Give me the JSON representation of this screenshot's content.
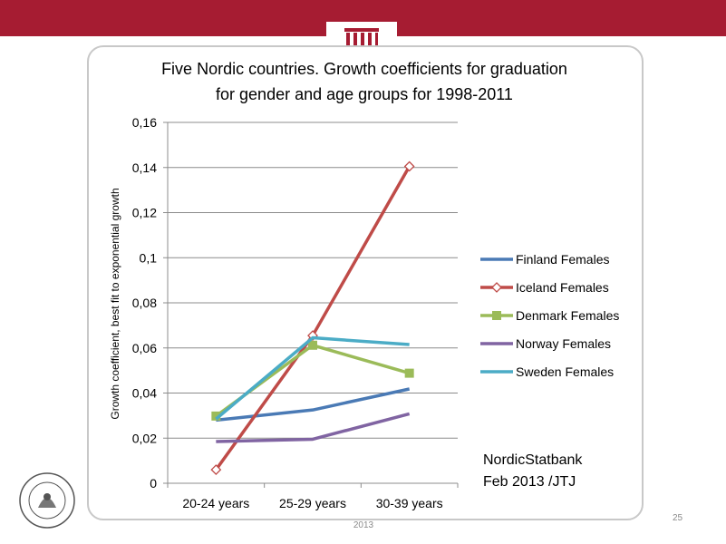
{
  "footer": {
    "year": "2013",
    "page_number": "25"
  },
  "seal": {
    "text": "UNIVERSITATIS ISLANDIAE • SIGILLUM"
  },
  "colors": {
    "top_bar": "#a61c32",
    "grid": "#8c8c8c"
  },
  "chart_data": {
    "type": "line",
    "title_lines": [
      "Five Nordic countries.  Growth coefficients for graduation",
      "for gender and age groups for 1998-2011"
    ],
    "xlabel": "",
    "ylabel": "Growth coefficient, best fit to exponential growth",
    "categories": [
      "20-24 years",
      "25-29 years",
      "30-39 years"
    ],
    "ylim": [
      0,
      0.16
    ],
    "yticks": [
      "0",
      "0,02",
      "0,04",
      "0,06",
      "0,08",
      "0,1",
      "0,12",
      "0,14",
      "0,16"
    ],
    "grid": true,
    "legend_position": "right",
    "series": [
      {
        "name": "Finland Females",
        "values": [
          0.028,
          0.0325,
          0.0418
        ],
        "color": "#4a7ab5",
        "marker": "none"
      },
      {
        "name": "Iceland Females",
        "values": [
          0.006,
          0.0655,
          0.1405
        ],
        "color": "#bf4b48",
        "marker": "diamond"
      },
      {
        "name": "Denmark Females",
        "values": [
          0.0298,
          0.0612,
          0.0488
        ],
        "color": "#9bbb59",
        "marker": "square"
      },
      {
        "name": "Norway Females",
        "values": [
          0.0185,
          0.0195,
          0.0308
        ],
        "color": "#8064a2",
        "marker": "none"
      },
      {
        "name": "Sweden Females",
        "values": [
          0.0285,
          0.0645,
          0.0615
        ],
        "color": "#4bacc6",
        "marker": "none"
      }
    ],
    "annotation_lines": [
      "NordicStatbank",
      "Feb 2013 /JTJ"
    ]
  }
}
